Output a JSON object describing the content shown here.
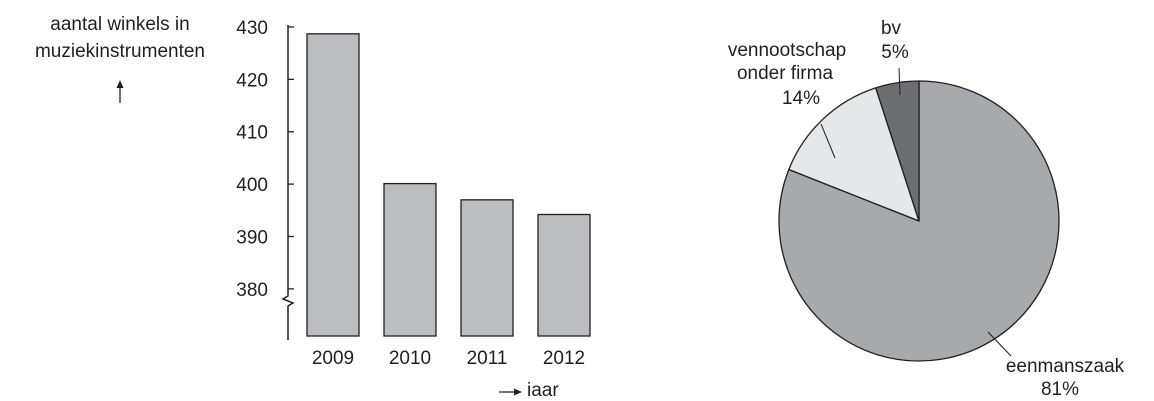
{
  "chart_data": [
    {
      "type": "bar",
      "title": "",
      "ylabel": "aantal winkels in muziekinstrumenten",
      "xlabel": "jaar",
      "categories": [
        "2009",
        "2010",
        "2011",
        "2012"
      ],
      "values": [
        428.7,
        400.1,
        397,
        394.2
      ],
      "ylim": [
        371,
        430
      ],
      "yticks": [
        380,
        390,
        400,
        410,
        420,
        430
      ],
      "axis_break": true,
      "grid": false,
      "bar_color": "#bcbdc0"
    },
    {
      "type": "pie",
      "title": "",
      "slices": [
        {
          "label": "eenmanszaak",
          "percent_label": "81%",
          "value": 81,
          "color": "#a7a9ac"
        },
        {
          "label": "vennootschap onder firma",
          "percent_label": "14%",
          "value": 14,
          "color": "#e6e7e8"
        },
        {
          "label": "bv",
          "percent_label": "5%",
          "value": 5,
          "color": "#6d6e71"
        }
      ]
    }
  ],
  "labels": {
    "ylabel_line1": "aantal winkels in",
    "ylabel_line2": "muziekinstrumenten",
    "xlabel": "jaar",
    "eenmanszaak_name": "eenmanszaak",
    "eenmanszaak_pct": "81%",
    "vof_line1": "vennootschap",
    "vof_line2": "onder firma",
    "vof_pct": "14%",
    "bv_name": "bv",
    "bv_pct": "5%"
  }
}
